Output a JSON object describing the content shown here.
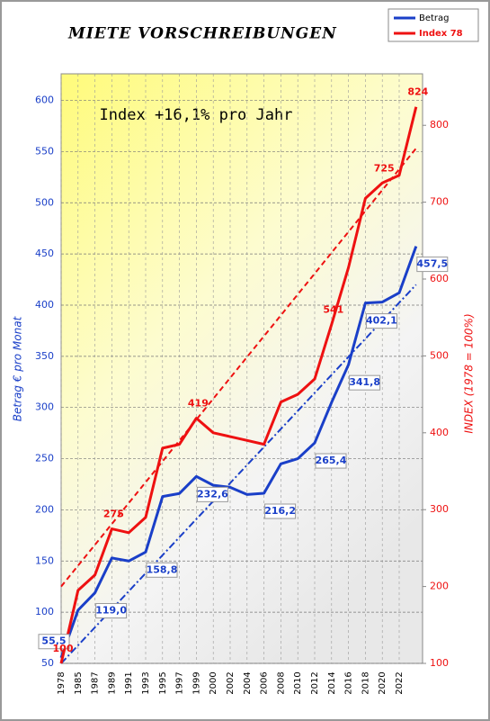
{
  "chart_data": {
    "type": "line",
    "title": "MIETE VORSCHREIBUNGEN",
    "annotation": "Index +16,1% pro Jahr",
    "y_label": "Betrag  €  pro  Monat",
    "y2_label": "INDEX   (1978 = 100%)",
    "categories": [
      "1978",
      "1985",
      "1987",
      "1989",
      "1991",
      "1993",
      "1995",
      "1997",
      "1999",
      "2000",
      "2002",
      "2004",
      "2006",
      "2008",
      "2010",
      "2012",
      "2014",
      "2016",
      "2018",
      "2020",
      "2022",
      null
    ],
    "series": [
      {
        "name": "Betrag",
        "color": "#1a3fc8",
        "axis": "y",
        "values": [
          55.5,
          102,
          119.0,
          153,
          150,
          158.8,
          213,
          216,
          232.6,
          224,
          222,
          215,
          216.2,
          245,
          250,
          265.4,
          305,
          341.8,
          402.1,
          403,
          412,
          457.5
        ],
        "value_labels": [
          "55,5",
          null,
          "119,0",
          null,
          null,
          "158,8",
          null,
          null,
          "232,6",
          null,
          null,
          null,
          "216,2",
          null,
          null,
          "265,4",
          null,
          "341,8",
          "402,1",
          null,
          null,
          "457,5"
        ]
      },
      {
        "name": "Index 78",
        "color": "#ee1111",
        "axis": "y2",
        "values": [
          100,
          195,
          215,
          275,
          270,
          290,
          380,
          385,
          419,
          400,
          395,
          390,
          385,
          440,
          450,
          470,
          541,
          615,
          705,
          725,
          735,
          824
        ],
        "value_labels": [
          "100",
          null,
          null,
          "275",
          null,
          null,
          null,
          null,
          "419",
          null,
          null,
          null,
          null,
          null,
          null,
          null,
          "541",
          null,
          null,
          "725",
          null,
          "824"
        ]
      }
    ],
    "trend_lines": [
      {
        "color": "#1a3fc8",
        "axis": "y",
        "style": "dashdot",
        "values": [
          50,
          420
        ]
      },
      {
        "color": "#ee1111",
        "axis": "y2",
        "style": "dashed",
        "values": [
          200,
          770
        ]
      }
    ],
    "ylim": [
      50,
      626
    ],
    "yticks": [
      50,
      100,
      150,
      200,
      250,
      300,
      350,
      400,
      450,
      500,
      550,
      600
    ],
    "y2lim": [
      100,
      867
    ],
    "y2ticks": [
      100,
      200,
      300,
      400,
      500,
      600,
      700,
      800
    ],
    "grid": true,
    "legend": "top-right"
  }
}
